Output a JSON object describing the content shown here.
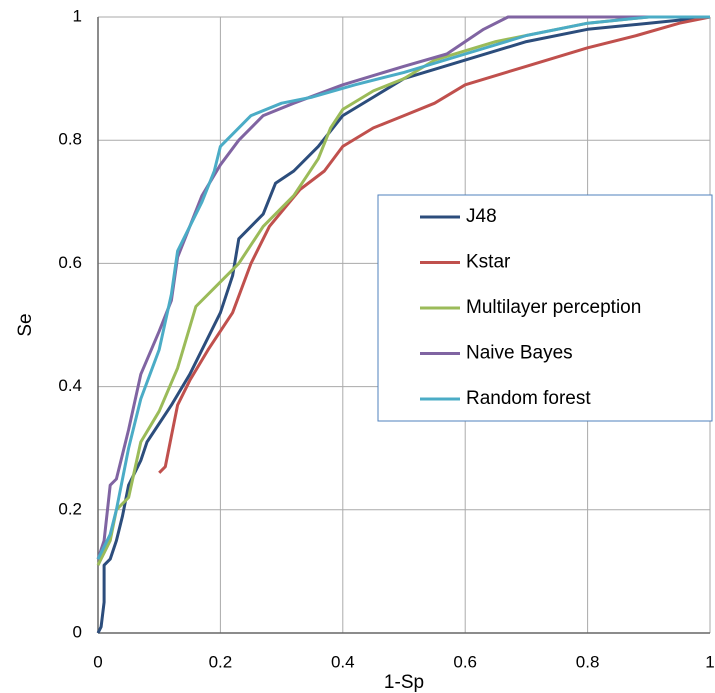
{
  "chart_data": {
    "type": "line",
    "x_label": "1-Sp",
    "y_label": "Se",
    "xlim": [
      0,
      1
    ],
    "ylim": [
      0,
      1
    ],
    "xticks": [
      0,
      0.2,
      0.4,
      0.6,
      0.8,
      1
    ],
    "yticks": [
      0,
      0.2,
      0.4,
      0.6,
      0.8,
      1
    ],
    "grid": true,
    "legend": "right",
    "series": [
      {
        "name": "J48",
        "color": "#2c4d7c",
        "x": [
          0,
          0.005,
          0.01,
          0.01,
          0.02,
          0.03,
          0.04,
          0.05,
          0.07,
          0.08,
          0.12,
          0.15,
          0.2,
          0.22,
          0.23,
          0.27,
          0.29,
          0.32,
          0.36,
          0.4,
          0.45,
          0.5,
          0.6,
          0.7,
          0.8,
          0.9,
          1
        ],
        "values": [
          0,
          0.01,
          0.05,
          0.11,
          0.12,
          0.15,
          0.19,
          0.24,
          0.28,
          0.31,
          0.37,
          0.42,
          0.52,
          0.58,
          0.64,
          0.68,
          0.73,
          0.75,
          0.79,
          0.84,
          0.87,
          0.9,
          0.93,
          0.96,
          0.98,
          0.99,
          1
        ]
      },
      {
        "name": "Kstar",
        "color": "#c0504d",
        "x": [
          0.1,
          0.11,
          0.12,
          0.13,
          0.15,
          0.18,
          0.22,
          0.25,
          0.28,
          0.33,
          0.37,
          0.4,
          0.45,
          0.5,
          0.55,
          0.6,
          0.7,
          0.8,
          0.88,
          0.95,
          1
        ],
        "values": [
          0.26,
          0.27,
          0.32,
          0.37,
          0.41,
          0.46,
          0.52,
          0.6,
          0.66,
          0.72,
          0.75,
          0.79,
          0.82,
          0.84,
          0.86,
          0.89,
          0.92,
          0.95,
          0.97,
          0.99,
          1
        ]
      },
      {
        "name": "Multilayer perception",
        "color": "#9bbb59",
        "x": [
          0,
          0.02,
          0.03,
          0.05,
          0.07,
          0.1,
          0.13,
          0.16,
          0.2,
          0.23,
          0.27,
          0.32,
          0.36,
          0.38,
          0.4,
          0.45,
          0.5,
          0.55,
          0.65,
          0.8,
          0.9,
          1
        ],
        "values": [
          0.11,
          0.15,
          0.2,
          0.22,
          0.31,
          0.36,
          0.43,
          0.53,
          0.57,
          0.6,
          0.66,
          0.71,
          0.77,
          0.82,
          0.85,
          0.88,
          0.9,
          0.93,
          0.96,
          0.99,
          1,
          1
        ]
      },
      {
        "name": "Naive Bayes",
        "color": "#8064a2",
        "x": [
          0,
          0.01,
          0.02,
          0.03,
          0.05,
          0.07,
          0.1,
          0.12,
          0.13,
          0.15,
          0.17,
          0.2,
          0.23,
          0.27,
          0.32,
          0.4,
          0.5,
          0.57,
          0.6,
          0.63,
          0.67,
          1
        ],
        "values": [
          0.12,
          0.15,
          0.24,
          0.25,
          0.33,
          0.42,
          0.49,
          0.54,
          0.61,
          0.66,
          0.71,
          0.76,
          0.8,
          0.84,
          0.86,
          0.89,
          0.92,
          0.94,
          0.96,
          0.98,
          1,
          1
        ]
      },
      {
        "name": "Random forest",
        "color": "#4bacc6",
        "x": [
          0,
          0.02,
          0.03,
          0.05,
          0.07,
          0.1,
          0.12,
          0.13,
          0.17,
          0.19,
          0.2,
          0.25,
          0.3,
          0.35,
          0.42,
          0.5,
          0.6,
          0.7,
          0.8,
          0.9,
          1
        ],
        "values": [
          0.12,
          0.16,
          0.2,
          0.3,
          0.38,
          0.46,
          0.55,
          0.62,
          0.7,
          0.75,
          0.79,
          0.84,
          0.86,
          0.87,
          0.89,
          0.91,
          0.94,
          0.97,
          0.99,
          1,
          1
        ]
      }
    ]
  }
}
